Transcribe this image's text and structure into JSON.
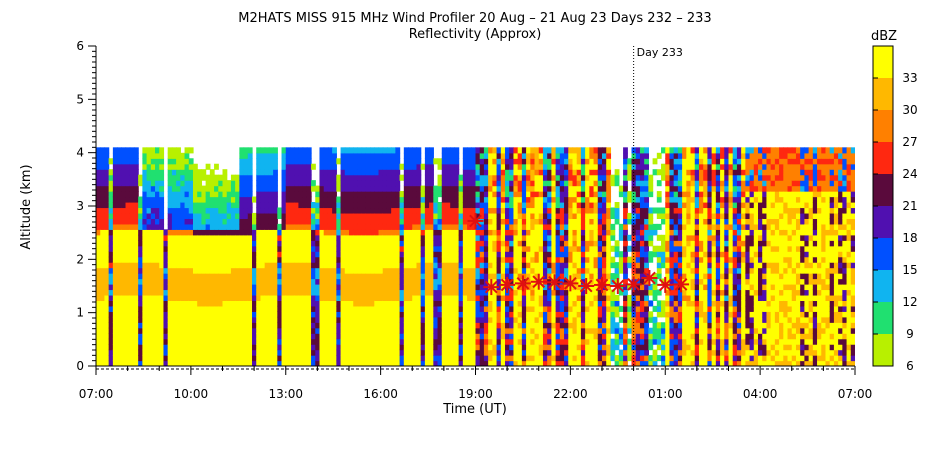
{
  "chart_data": {
    "type": "heatmap",
    "title": "M2HATS MISS 915 MHz Wind Profiler  20 Aug – 21 Aug 23 Days 232 – 233",
    "subtitle": "Reflectivity (Approx)",
    "xlabel": "Time (UT)",
    "ylabel": "Altitude (km)",
    "x_tick_labels": [
      "07:00",
      "10:00",
      "13:00",
      "16:00",
      "19:00",
      "22:00",
      "01:00",
      "04:00",
      "07:00"
    ],
    "x_ticks_hours": [
      0,
      3,
      6,
      9,
      12,
      15,
      18,
      21,
      24
    ],
    "y_ticks": [
      0,
      1,
      2,
      3,
      4,
      5,
      6
    ],
    "ylim": [
      0,
      6
    ],
    "xlim_hours": [
      0,
      24
    ],
    "data_top_km": 4.1,
    "day_marker": {
      "label": "Day 233",
      "hour": 17
    },
    "colorbar": {
      "unit": "dBZ",
      "tick_labels": [
        "6",
        "9",
        "12",
        "15",
        "18",
        "21",
        "24",
        "27",
        "30",
        "33"
      ],
      "tick_values": [
        6,
        9,
        12,
        15,
        18,
        21,
        24,
        27,
        30,
        33
      ],
      "bands": [
        {
          "from": 6,
          "to": 9,
          "color": "#b8f000"
        },
        {
          "from": 9,
          "to": 12,
          "color": "#20e070"
        },
        {
          "from": 12,
          "to": 15,
          "color": "#10b4f0"
        },
        {
          "from": 15,
          "to": 18,
          "color": "#0050ff"
        },
        {
          "from": 18,
          "to": 21,
          "color": "#5010b0"
        },
        {
          "from": 21,
          "to": 24,
          "color": "#5a0a3c"
        },
        {
          "from": 24,
          "to": 27,
          "color": "#ff2810"
        },
        {
          "from": 27,
          "to": 30,
          "color": "#ff8000"
        },
        {
          "from": 30,
          "to": 33,
          "color": "#ffb800"
        },
        {
          "from": 33,
          "to": 36,
          "color": "#ffff00"
        }
      ]
    },
    "marker_color": "#e01010",
    "markers": [
      {
        "hour": 12.0,
        "km": 2.72
      },
      {
        "hour": 12.5,
        "km": 1.48
      },
      {
        "hour": 13.0,
        "km": 1.52
      },
      {
        "hour": 13.5,
        "km": 1.55
      },
      {
        "hour": 14.0,
        "km": 1.58
      },
      {
        "hour": 14.5,
        "km": 1.57
      },
      {
        "hour": 15.0,
        "km": 1.55
      },
      {
        "hour": 15.5,
        "km": 1.5
      },
      {
        "hour": 16.0,
        "km": 1.52
      },
      {
        "hour": 16.5,
        "km": 1.5
      },
      {
        "hour": 17.0,
        "km": 1.53
      },
      {
        "hour": 17.5,
        "km": 1.65
      },
      {
        "hour": 18.0,
        "km": 1.52
      },
      {
        "hour": 18.5,
        "km": 1.53
      }
    ]
  }
}
